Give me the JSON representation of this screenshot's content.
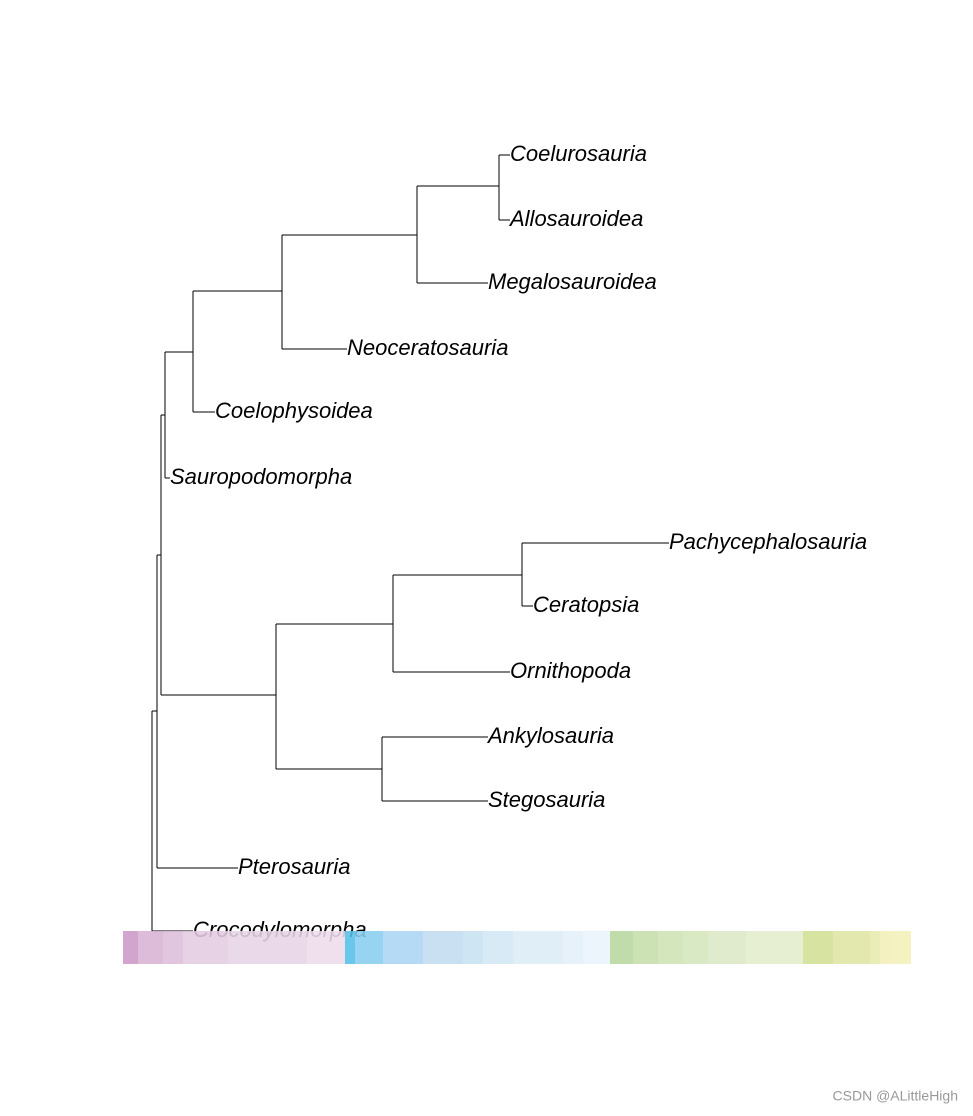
{
  "tree": {
    "leaves": [
      "Coelurosauria",
      "Allosauroidea",
      "Megalosauroidea",
      "Neoceratosauria",
      "Coelophysoidea",
      "Sauropodomorpha",
      "Pachycephalosauria",
      "Ceratopsia",
      "Ornithopoda",
      "Ankylosauria",
      "Stegosauria",
      "Pterosauria",
      "Crocodylomorpha"
    ]
  },
  "watermark": "CSDN @ALittleHigh"
}
